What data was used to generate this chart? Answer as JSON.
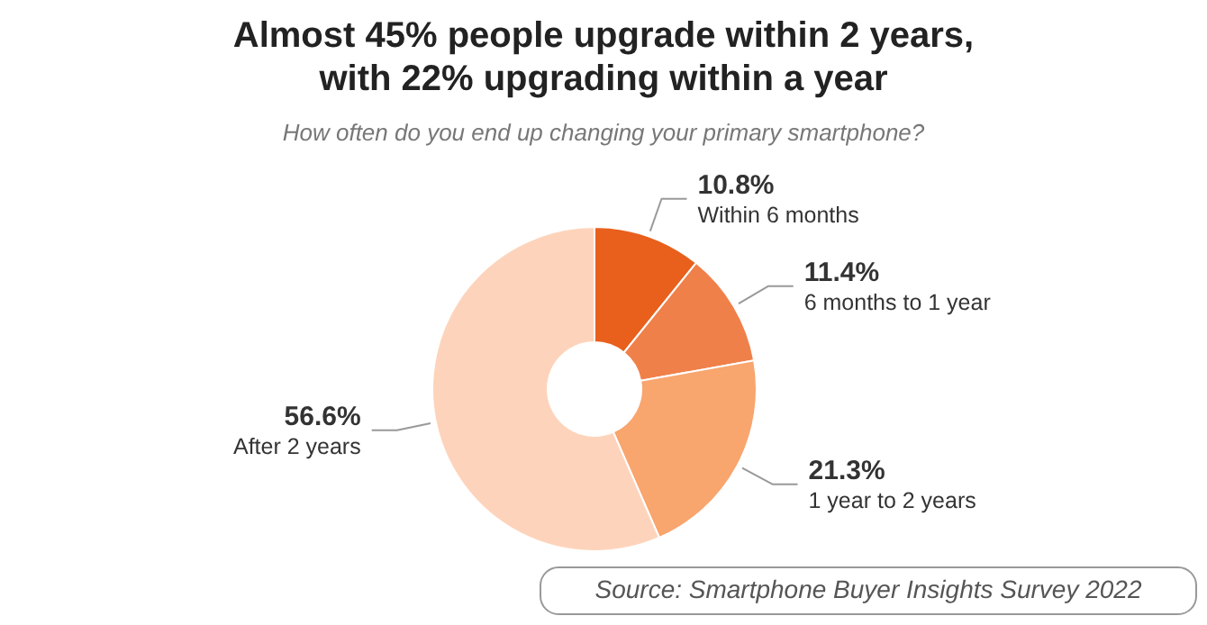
{
  "chart_data": {
    "type": "donut",
    "title": "Almost 45% people upgrade within 2 years,\nwith 22% upgrading within a year",
    "subtitle": "How often do you end up changing your primary smartphone?",
    "categories": [
      "Within 6 months",
      "6 months to 1 year",
      "1 year to 2 years",
      "After 2 years"
    ],
    "values": [
      10.8,
      11.4,
      21.3,
      56.6
    ],
    "value_labels": [
      "10.8%",
      "11.4%",
      "21.3%",
      "56.6%"
    ],
    "colors": [
      "#e8601c",
      "#f0804a",
      "#f8a56e",
      "#fdd4bb"
    ],
    "annotations": [
      "Source: Smartphone Buyer Insights Survey 2022"
    ]
  }
}
